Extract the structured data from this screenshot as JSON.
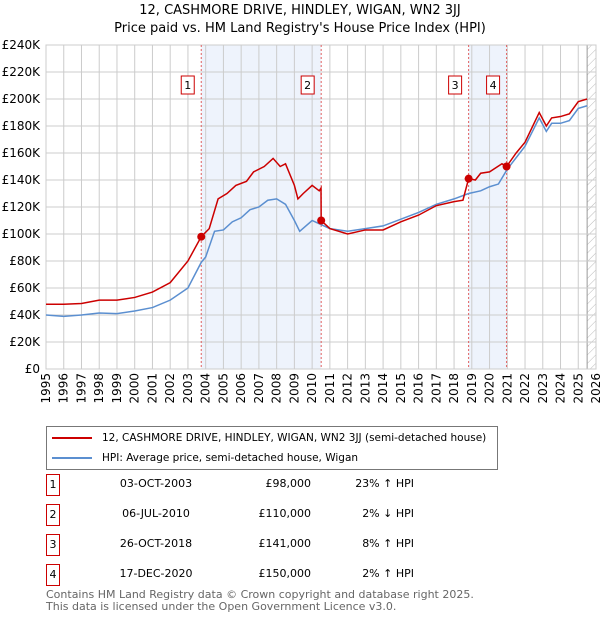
{
  "chart_data": {
    "type": "line",
    "title": "12, CASHMORE DRIVE, HINDLEY, WIGAN, WN2 3JJ",
    "subtitle": "Price paid vs. HM Land Registry's House Price Index (HPI)",
    "xlim": [
      1995,
      2026
    ],
    "ylim": [
      0,
      240000
    ],
    "x_ticks": [
      "1995",
      "1996",
      "1997",
      "1998",
      "1999",
      "2000",
      "2001",
      "2002",
      "2003",
      "2004",
      "2005",
      "2006",
      "2007",
      "2008",
      "2009",
      "2010",
      "2011",
      "2012",
      "2013",
      "2014",
      "2015",
      "2016",
      "2017",
      "2018",
      "2019",
      "2020",
      "2021",
      "2022",
      "2023",
      "2024",
      "2025",
      "2026"
    ],
    "y_ticks": [
      "£0",
      "£20K",
      "£40K",
      "£60K",
      "£80K",
      "£100K",
      "£120K",
      "£140K",
      "£160K",
      "£180K",
      "£200K",
      "£220K",
      "£240K"
    ],
    "grid": true,
    "shaded_periods": [
      [
        2003.75,
        2010.51
      ],
      [
        2018.82,
        2020.96
      ]
    ],
    "future_hatch_from": 2025.5,
    "series": [
      {
        "name": "12, CASHMORE DRIVE, HINDLEY, WIGAN, WN2 3JJ (semi-detached house)",
        "color": "#cc0000",
        "x": [
          1995,
          1996,
          1997,
          1998,
          1999,
          2000,
          2001,
          2002,
          2003,
          2003.75,
          2004.2,
          2004.7,
          2005.2,
          2005.7,
          2006.3,
          2006.7,
          2007.3,
          2007.8,
          2008.2,
          2008.5,
          2009,
          2009.2,
          2009.5,
          2010,
          2010.4,
          2010.5,
          2010.51,
          2011,
          2012,
          2013,
          2014,
          2015,
          2016,
          2017,
          2018,
          2018.5,
          2018.82,
          2019.2,
          2019.5,
          2020,
          2020.7,
          2020.96,
          2021.5,
          2022,
          2022.8,
          2023.2,
          2023.5,
          2024,
          2024.5,
          2025,
          2025.5
        ],
        "y": [
          48000,
          48000,
          48500,
          51000,
          51000,
          53000,
          57000,
          64000,
          80000,
          98000,
          104000,
          126000,
          130000,
          136000,
          139000,
          146000,
          150000,
          156000,
          150000,
          152000,
          136000,
          126000,
          130000,
          136000,
          132000,
          134000,
          110000,
          104000,
          100000,
          103000,
          103000,
          109000,
          114000,
          121000,
          124000,
          125000,
          141000,
          140000,
          145000,
          146000,
          152000,
          150000,
          160000,
          168000,
          190000,
          180000,
          186000,
          187000,
          189000,
          198000,
          200000
        ]
      },
      {
        "name": "HPI: Average price, semi-detached house, Wigan",
        "color": "#5b8fd0",
        "x": [
          1995,
          1996,
          1997,
          1998,
          1999,
          2000,
          2001,
          2002,
          2003,
          2003.75,
          2004,
          2004.5,
          2005,
          2005.5,
          2006,
          2006.5,
          2007,
          2007.5,
          2008,
          2008.5,
          2009,
          2009.3,
          2010,
          2010.5,
          2011,
          2012,
          2013,
          2014,
          2015,
          2016,
          2017,
          2018,
          2018.82,
          2019.5,
          2020,
          2020.5,
          2021,
          2022,
          2022.8,
          2023.2,
          2023.5,
          2024,
          2024.5,
          2025,
          2025.5
        ],
        "y": [
          40000,
          39000,
          40000,
          41500,
          41000,
          43000,
          45500,
          51000,
          60000,
          79000,
          83000,
          102000,
          103000,
          109000,
          112000,
          118000,
          120000,
          125000,
          126000,
          122000,
          110000,
          102000,
          110000,
          107000,
          104000,
          102000,
          104000,
          106000,
          111000,
          116000,
          122000,
          126000,
          130000,
          132000,
          135000,
          137000,
          148000,
          165000,
          186000,
          176000,
          182000,
          182000,
          184000,
          193000,
          195000
        ]
      }
    ],
    "sales": [
      {
        "label": "1",
        "date": "03-OCT-2003",
        "x": 2003.75,
        "price": "£98,000",
        "value": 98000,
        "hpi": "23% ↑ HPI"
      },
      {
        "label": "2",
        "date": "06-JUL-2010",
        "x": 2010.51,
        "price": "£110,000",
        "value": 110000,
        "hpi": "2% ↓ HPI"
      },
      {
        "label": "3",
        "date": "26-OCT-2018",
        "x": 2018.82,
        "price": "£141,000",
        "value": 141000,
        "hpi": "8% ↑ HPI"
      },
      {
        "label": "4",
        "date": "17-DEC-2020",
        "x": 2020.96,
        "price": "£150,000",
        "value": 150000,
        "hpi": "2% ↑ HPI"
      }
    ]
  },
  "footer": {
    "line1": "Contains HM Land Registry data © Crown copyright and database right 2025.",
    "line2": "This data is licensed under the Open Government Licence v3.0."
  }
}
